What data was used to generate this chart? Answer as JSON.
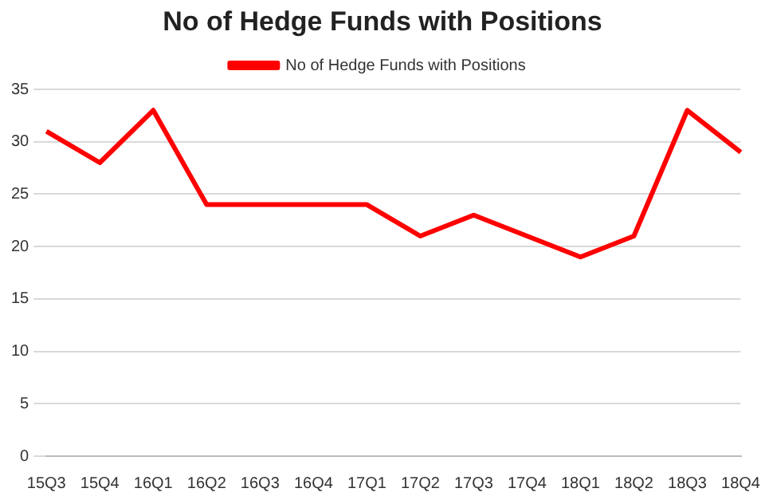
{
  "chart_data": {
    "type": "line",
    "title": "No of Hedge Funds with Positions",
    "categories": [
      "15Q3",
      "15Q4",
      "16Q1",
      "16Q2",
      "16Q3",
      "16Q4",
      "17Q1",
      "17Q2",
      "17Q3",
      "17Q4",
      "18Q1",
      "18Q2",
      "18Q3",
      "18Q4"
    ],
    "series": [
      {
        "name": "No of Hedge Funds with Positions",
        "color": "#ff0000",
        "values": [
          31,
          28,
          33,
          24,
          24,
          24,
          24,
          21,
          23,
          21,
          19,
          21,
          33,
          29
        ]
      }
    ],
    "ylim": [
      0,
      35
    ],
    "yticks": [
      0,
      5,
      10,
      15,
      20,
      25,
      30,
      35
    ],
    "grid": "y",
    "legend": "top",
    "marker": "none",
    "line_style": "solid"
  }
}
